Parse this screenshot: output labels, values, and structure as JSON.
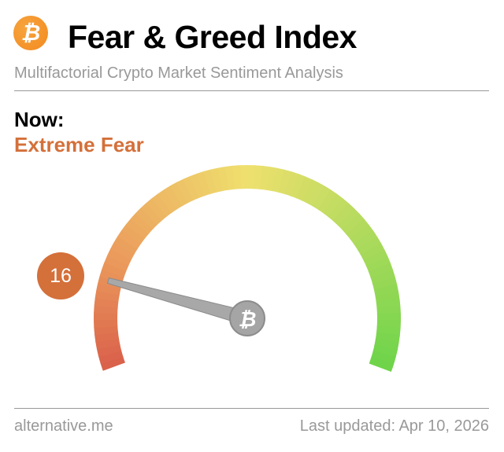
{
  "header": {
    "logo_icon": "bitcoin-icon",
    "logo_glyph": "₿",
    "title": "Fear & Greed Index",
    "subtitle": "Multifactorial Crypto Market Sentiment Analysis"
  },
  "current": {
    "label": "Now:",
    "classification": "Extreme Fear",
    "value": "16",
    "value_fraction": 0.16,
    "classification_color": "#d4703a"
  },
  "gauge": {
    "min": 0,
    "max": 100,
    "colors": [
      "#d9604a",
      "#eb9a5c",
      "#efe06e",
      "#6dd44a"
    ],
    "needle_icon": "bitcoin-icon"
  },
  "footer": {
    "source": "alternative.me",
    "updated": "Last updated: Apr 10, 2026"
  }
}
